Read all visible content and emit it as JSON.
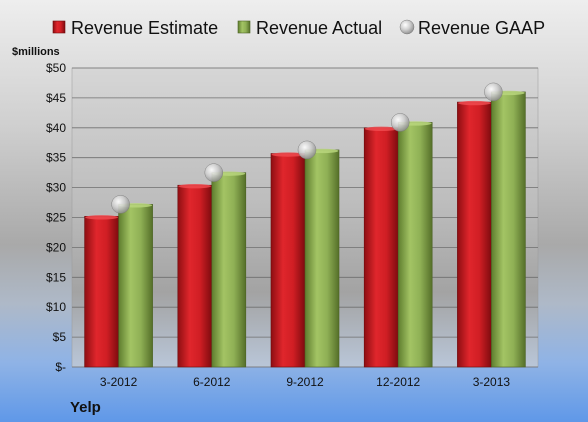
{
  "chart_data": {
    "type": "bar",
    "unit_label": "$millions",
    "footer_label": "Yelp",
    "categories": [
      "3-2012",
      "6-2012",
      "9-2012",
      "12-2012",
      "3-2013"
    ],
    "series": [
      {
        "name": "Revenue Estimate",
        "kind": "bar",
        "color": "#c8161d",
        "values": [
          25.2,
          30.4,
          35.7,
          40.0,
          44.3
        ]
      },
      {
        "name": "Revenue Actual",
        "kind": "bar",
        "color": "#84a64a",
        "values": [
          27.2,
          32.5,
          36.3,
          40.9,
          46.0
        ]
      },
      {
        "name": "Revenue GAAP",
        "kind": "marker",
        "color": "#b8b8b8",
        "values": [
          27.2,
          32.5,
          36.3,
          40.9,
          46.0
        ]
      }
    ],
    "ylim": [
      0,
      50
    ],
    "yticks": [
      0,
      5,
      10,
      15,
      20,
      25,
      30,
      35,
      40,
      45,
      50
    ],
    "ytick_labels": [
      "$-",
      "$5",
      "$10",
      "$15",
      "$20",
      "$25",
      "$30",
      "$35",
      "$40",
      "$45",
      "$50"
    ],
    "grid": true,
    "legend_position": "top"
  }
}
